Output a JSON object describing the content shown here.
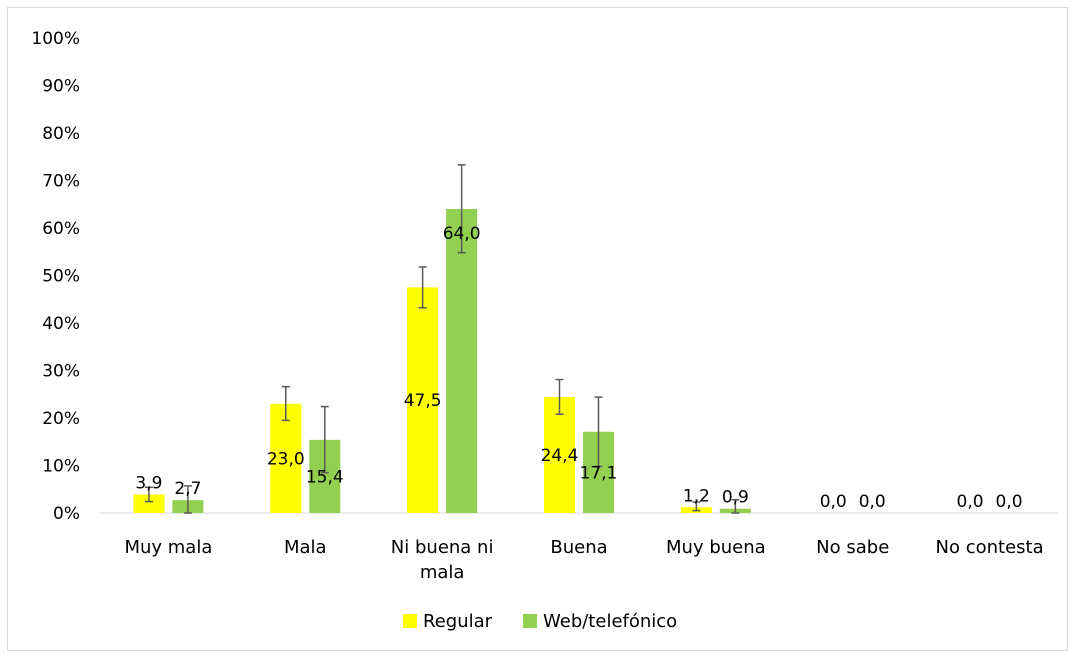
{
  "chart_data": {
    "type": "bar",
    "categories": [
      "Muy mala",
      "Mala",
      "Ni buena ni mala",
      "Buena",
      "Muy buena",
      "No sabe",
      "No contesta"
    ],
    "category_lines": [
      [
        "Muy mala"
      ],
      [
        "Mala"
      ],
      [
        "Ni buena ni",
        "mala"
      ],
      [
        "Buena"
      ],
      [
        "Muy buena"
      ],
      [
        "No sabe"
      ],
      [
        "No contesta"
      ]
    ],
    "series": [
      {
        "name": "Regular",
        "color": "#ffff00",
        "values": [
          3.9,
          23.0,
          47.5,
          24.4,
          1.2,
          0.0,
          0.0
        ],
        "labels": [
          "3,9",
          "23,0",
          "47,5",
          "24,4",
          "1,2",
          "0,0",
          "0,0"
        ],
        "error_low": [
          2.4,
          19.5,
          43.2,
          20.8,
          0.5,
          null,
          null
        ],
        "error_high": [
          5.4,
          26.6,
          51.8,
          28.1,
          2.3,
          null,
          null
        ]
      },
      {
        "name": "Web/telefónico",
        "color": "#92d050",
        "values": [
          2.7,
          15.4,
          64.0,
          17.1,
          0.9,
          0.0,
          0.0
        ],
        "labels": [
          "2,7",
          "15,4",
          "64,0",
          "17,1",
          "0,9",
          "0,0",
          "0,0"
        ],
        "error_low": [
          0.0,
          8.5,
          54.8,
          9.8,
          0.0,
          null,
          null
        ],
        "error_high": [
          5.7,
          22.4,
          73.3,
          24.4,
          2.8,
          null,
          null
        ]
      }
    ],
    "yticks": [
      "0%",
      "10%",
      "20%",
      "30%",
      "40%",
      "50%",
      "60%",
      "70%",
      "80%",
      "90%",
      "100%"
    ],
    "ylim": [
      0,
      100
    ],
    "grid": false,
    "legend_position": "bottom",
    "xlabel": "",
    "ylabel": ""
  }
}
